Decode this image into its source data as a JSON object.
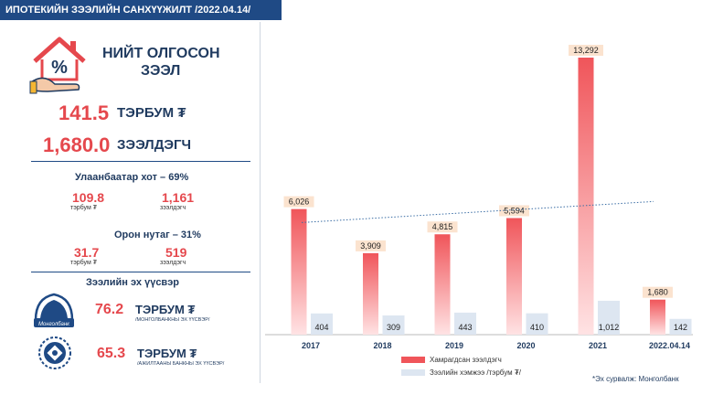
{
  "header": {
    "title": "ИПОТЕКИЙН ЗЭЭЛИЙН САНХҮҮЖИЛТ /2022.04.14/"
  },
  "summary": {
    "title_line1": "НИЙТ ОЛГОСОН",
    "title_line2": "ЗЭЭЛ",
    "amount_value": "141.5",
    "amount_unit": "ТЭРБУМ ₮",
    "borrowers_value": "1,680.0",
    "borrowers_unit": "ЗЭЭЛДЭГЧ"
  },
  "ulaanbaatar": {
    "heading": "Улаанбаатар хот – 69%",
    "amount": "109.8",
    "amount_label": "тэрбум ₮",
    "borrowers": "1,161",
    "borrowers_label": "зээлдэгч"
  },
  "rural": {
    "heading": "Орон нутаг – 31%",
    "amount": "31.7",
    "amount_label": "тэрбум ₮",
    "borrowers": "519",
    "borrowers_label": "зээлдэгч"
  },
  "sources": {
    "heading": "Зээлийн эх үүсвэр",
    "items": [
      {
        "value": "76.2",
        "unit": "ТЭРБУМ ₮",
        "caption": "/МОНГОЛБАНКНЫ ЭХ ҮҮСВЭР/",
        "logo_text": "Монголбанк"
      },
      {
        "value": "65.3",
        "unit": "ТЭРБУМ ₮",
        "caption": "/АЖИЛТААНЫ БАНКНЫ ЭХ ҮҮСВЭР/"
      }
    ]
  },
  "chart_data": {
    "type": "bar",
    "categories": [
      "2017",
      "2018",
      "2019",
      "2020",
      "2021",
      "2022.04.14"
    ],
    "series": [
      {
        "name": "Хамрагдсан зээлдэгч",
        "values": [
          6026,
          3909,
          4815,
          5594,
          13292,
          1680
        ],
        "labels": [
          "6,026",
          "3,909",
          "4,815",
          "5,594",
          "13,292",
          "1,680"
        ],
        "color": "#f0555a"
      },
      {
        "name": "Зээлийн хэмжээ /тэрбум ₮/",
        "values": [
          404,
          309,
          443,
          410,
          1012,
          142
        ],
        "labels": [
          "404",
          "309",
          "443",
          "410",
          "1,012",
          "142"
        ],
        "color": "#dde6f1"
      }
    ],
    "trendline": "dotted linear trend of borrowers",
    "legend_position": "bottom",
    "grid": false
  },
  "footer": {
    "source_note": "*Эх сурвалж: Монголбанк"
  },
  "colors": {
    "navy": "#1f4a85",
    "red": "#e5484d"
  }
}
